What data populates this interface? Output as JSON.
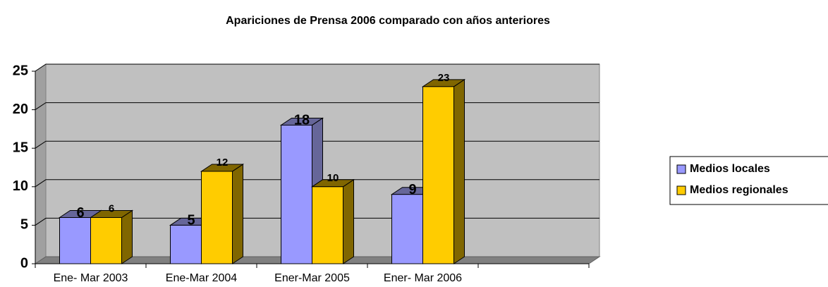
{
  "chart_data": {
    "type": "bar3d",
    "title": "Apariciones de Prensa 2006 comparado con años anteriores",
    "categories": [
      "Ene- Mar 2003",
      "Ene-Mar 2004",
      "Ener-Mar 2005",
      "Ener- Mar 2006",
      null
    ],
    "series": [
      {
        "name": "Medios locales",
        "color": "#9999ff",
        "side": "#666699",
        "values": [
          6,
          5,
          18,
          9,
          null
        ]
      },
      {
        "name": "Medios regionales",
        "color": "#ffcc00",
        "side": "#806600",
        "values": [
          6,
          12,
          10,
          23,
          null
        ]
      }
    ],
    "ylim": [
      0,
      25
    ],
    "yticks": [
      0,
      5,
      10,
      15,
      20,
      25
    ],
    "grid": true,
    "legend": "right"
  }
}
